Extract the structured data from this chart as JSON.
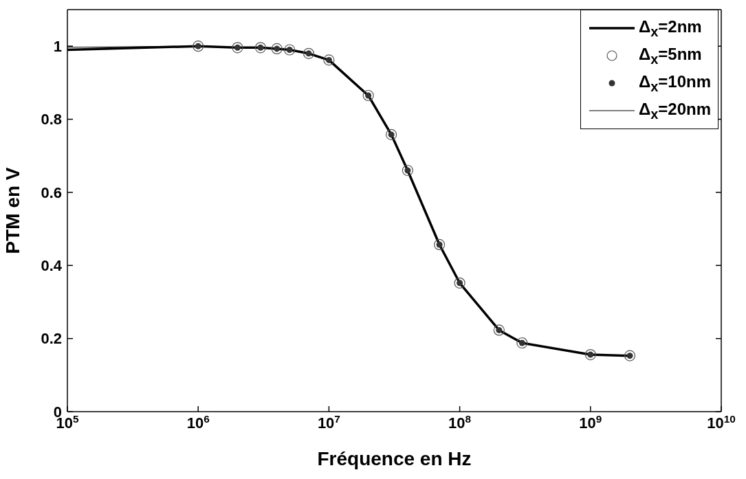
{
  "chart_data": {
    "type": "line",
    "xlabel": "Fréquence en Hz",
    "ylabel": "PTM en V",
    "log": "x",
    "xlim": [
      100000,
      10000000000
    ],
    "ylim": [
      0,
      1.1
    ],
    "xticks": [
      {
        "value": 100000,
        "label": "10$^{5}$"
      },
      {
        "value": 1000000,
        "label": "10$^{6}$"
      },
      {
        "value": 10000000,
        "label": "10$^{7}$"
      },
      {
        "value": 100000000,
        "label": "10$^{8}$"
      },
      {
        "value": 1000000000,
        "label": "10$^{9}$"
      },
      {
        "value": 10000000000,
        "label": "10$^{10}$"
      }
    ],
    "yticks": [
      0,
      0.2,
      0.4,
      0.6,
      0.8,
      1
    ],
    "grid": false,
    "legend": "top right",
    "series": [
      {
        "name": "Δ$_{x}$=2nm",
        "color": "#000000",
        "marker": "none",
        "x": [
          100000,
          1000000,
          2000000,
          3000000,
          4000000,
          5000000,
          7000000,
          10000000,
          20000000,
          30000000,
          40000000,
          70000000,
          100000000,
          200000000,
          300000000,
          1000000000,
          2000000000
        ],
        "values": [
          0.99,
          1.0,
          0.996,
          0.996,
          0.993,
          0.99,
          0.98,
          0.962,
          0.865,
          0.758,
          0.66,
          0.457,
          0.352,
          0.223,
          0.188,
          0.156,
          0.153
        ]
      },
      {
        "name": "Δ$_{x}$=5nm",
        "type": "scatter",
        "color": "#555555",
        "marker": "circle",
        "x": [
          1000000,
          2000000,
          3000000,
          4000000,
          5000000,
          7000000,
          10000000,
          20000000,
          30000000,
          40000000,
          70000000,
          100000000,
          200000000,
          300000000,
          1000000000,
          2000000000
        ],
        "values": [
          1.0,
          0.996,
          0.996,
          0.993,
          0.99,
          0.98,
          0.962,
          0.865,
          0.758,
          0.66,
          0.457,
          0.352,
          0.223,
          0.188,
          0.156,
          0.153
        ]
      },
      {
        "name": "Δ$_{x}$=10nm",
        "type": "scatter",
        "color": "#333333",
        "marker": "circle",
        "x": [
          1000000,
          2000000,
          3000000,
          4000000,
          5000000,
          7000000,
          10000000,
          20000000,
          30000000,
          40000000,
          70000000,
          100000000,
          200000000,
          300000000,
          1000000000,
          2000000000
        ],
        "values": [
          1.0,
          0.996,
          0.996,
          0.993,
          0.99,
          0.98,
          0.962,
          0.865,
          0.758,
          0.66,
          0.457,
          0.352,
          0.223,
          0.188,
          0.156,
          0.153
        ]
      },
      {
        "name": "Δ$_{x}$=20nm",
        "color": "#000000",
        "marker": "none",
        "x": [
          100000,
          1000000,
          2000000,
          3000000,
          4000000,
          5000000,
          7000000,
          10000000,
          20000000,
          30000000,
          40000000,
          70000000,
          100000000,
          200000000,
          300000000,
          1000000000,
          2000000000
        ],
        "values": [
          0.997,
          1.0,
          0.996,
          0.996,
          0.993,
          0.99,
          0.98,
          0.962,
          0.865,
          0.758,
          0.66,
          0.457,
          0.352,
          0.223,
          0.188,
          0.156,
          0.153
        ]
      }
    ]
  }
}
